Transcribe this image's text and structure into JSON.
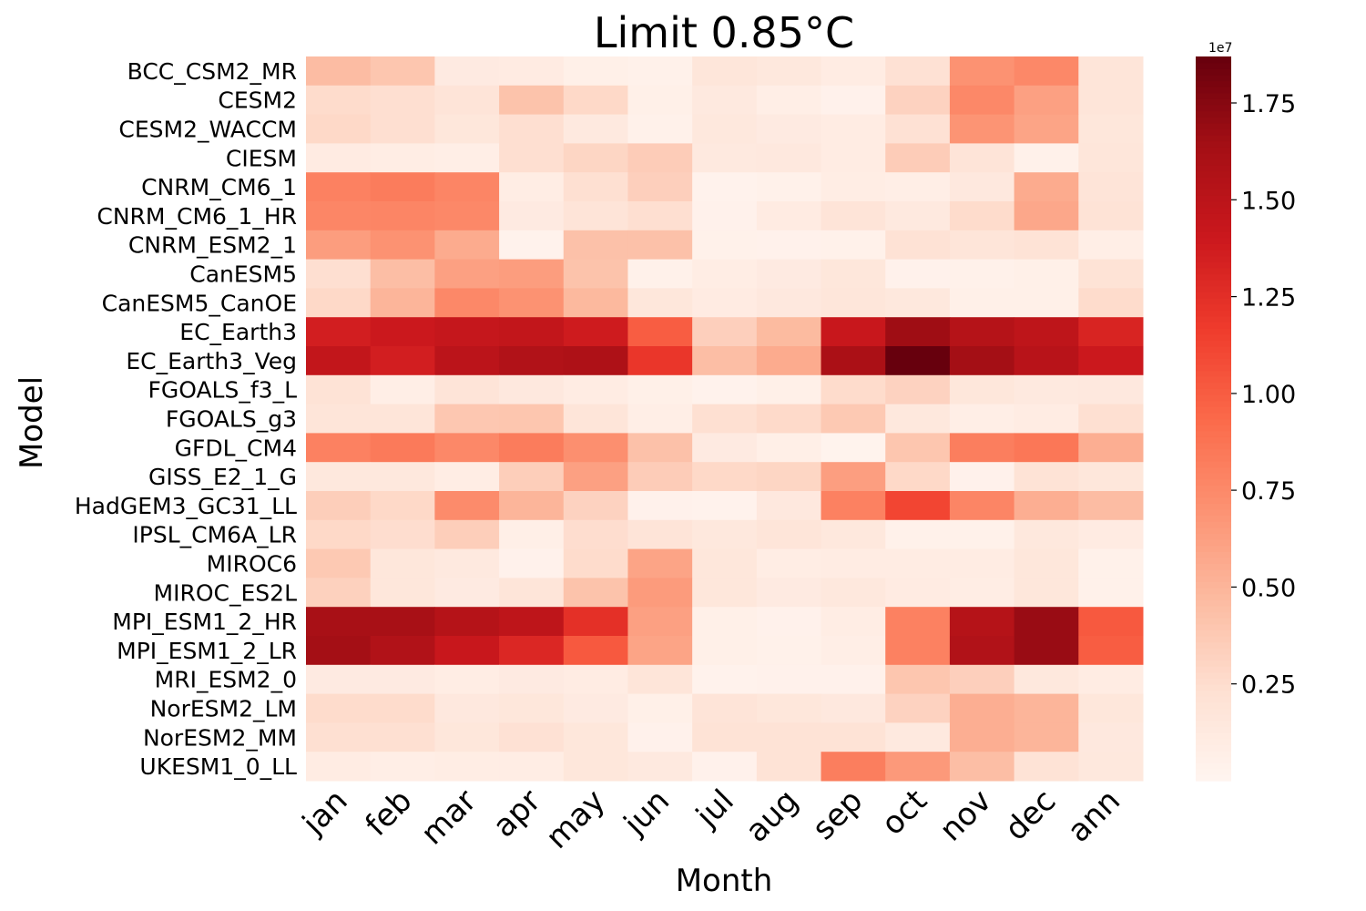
{
  "chart_data": {
    "type": "heatmap",
    "title": "Limit 0.85°C",
    "xlabel": "Month",
    "ylabel": "Model",
    "x_categories": [
      "jan",
      "feb",
      "mar",
      "apr",
      "may",
      "jun",
      "jul",
      "aug",
      "sep",
      "oct",
      "nov",
      "dec",
      "ann"
    ],
    "y_categories": [
      "BCC_CSM2_MR",
      "CESM2",
      "CESM2_WACCM",
      "CIESM",
      "CNRM_CM6_1",
      "CNRM_CM6_1_HR",
      "CNRM_ESM2_1",
      "CanESM5",
      "CanESM5_CanOE",
      "EC_Earth3",
      "EC_Earth3_Veg",
      "FGOALS_f3_L",
      "FGOALS_g3",
      "GFDL_CM4",
      "GISS_E2_1_G",
      "HadGEM3_GC31_LL",
      "IPSL_CM6A_LR",
      "MIROC6",
      "MIROC_ES2L",
      "MPI_ESM1_2_HR",
      "MPI_ESM1_2_LR",
      "MRI_ESM2_0",
      "NorESM2_LM",
      "NorESM2_MM",
      "UKESM1_0_LL"
    ],
    "values": [
      [
        4.6,
        4.0,
        1.2,
        1.1,
        0.6,
        0.5,
        1.7,
        1.5,
        1.0,
        2.2,
        7.0,
        7.6,
        1.8
      ],
      [
        2.6,
        2.4,
        1.9,
        4.2,
        2.8,
        0.6,
        1.3,
        0.8,
        0.4,
        3.2,
        7.6,
        6.2,
        1.8
      ],
      [
        2.8,
        2.4,
        1.6,
        2.4,
        1.3,
        0.5,
        1.5,
        1.2,
        1.0,
        2.2,
        6.9,
        6.0,
        1.6
      ],
      [
        1.1,
        0.9,
        0.8,
        2.4,
        3.0,
        3.6,
        1.3,
        1.4,
        1.0,
        3.6,
        1.9,
        0.5,
        1.7
      ],
      [
        8.0,
        8.3,
        7.8,
        0.9,
        2.3,
        3.4,
        0.3,
        0.5,
        0.9,
        0.8,
        1.4,
        5.6,
        1.9
      ],
      [
        7.7,
        7.8,
        7.6,
        1.2,
        1.9,
        2.4,
        0.4,
        1.1,
        1.9,
        1.3,
        2.6,
        5.8,
        2.0
      ],
      [
        6.4,
        7.0,
        5.6,
        0.3,
        4.3,
        4.3,
        0.5,
        0.4,
        0.5,
        2.1,
        1.8,
        2.0,
        0.8
      ],
      [
        2.4,
        4.5,
        6.2,
        6.4,
        4.2,
        0.5,
        0.9,
        1.2,
        1.6,
        0.4,
        0.5,
        0.6,
        2.0
      ],
      [
        2.8,
        5.0,
        7.6,
        7.0,
        4.8,
        1.6,
        1.1,
        1.4,
        1.7,
        1.5,
        0.6,
        0.6,
        2.6
      ],
      [
        13.6,
        14.0,
        14.4,
        14.6,
        13.8,
        10.0,
        3.4,
        4.7,
        14.2,
        16.6,
        15.4,
        14.8,
        13.2
      ],
      [
        14.6,
        13.6,
        15.0,
        15.6,
        15.8,
        12.0,
        4.5,
        5.6,
        16.0,
        18.7,
        16.4,
        15.2,
        14.0
      ],
      [
        2.0,
        0.8,
        1.9,
        1.4,
        1.0,
        0.6,
        0.3,
        0.6,
        2.6,
        3.2,
        1.6,
        1.3,
        1.4
      ],
      [
        1.8,
        1.8,
        3.9,
        4.0,
        1.8,
        0.8,
        2.3,
        2.7,
        3.8,
        1.5,
        0.8,
        1.0,
        2.3
      ],
      [
        8.0,
        8.4,
        7.6,
        8.3,
        7.2,
        4.3,
        1.2,
        0.7,
        0.2,
        4.0,
        8.2,
        8.6,
        5.4
      ],
      [
        1.5,
        1.5,
        0.9,
        3.5,
        6.2,
        3.6,
        2.8,
        3.0,
        6.3,
        2.8,
        0.4,
        2.0,
        1.6
      ],
      [
        3.5,
        2.8,
        7.4,
        5.0,
        3.2,
        0.4,
        0.3,
        1.4,
        8.0,
        11.2,
        7.8,
        5.4,
        4.6
      ],
      [
        2.8,
        2.5,
        3.5,
        0.7,
        2.5,
        1.9,
        1.5,
        1.8,
        1.5,
        0.5,
        0.5,
        1.5,
        1.1
      ],
      [
        3.8,
        1.6,
        1.3,
        0.4,
        2.6,
        6.0,
        1.6,
        0.9,
        1.0,
        1.0,
        1.0,
        1.6,
        0.5
      ],
      [
        3.3,
        1.6,
        1.2,
        1.8,
        4.2,
        6.5,
        1.6,
        1.2,
        1.5,
        1.1,
        0.9,
        1.6,
        0.5
      ],
      [
        16.2,
        16.2,
        15.4,
        14.8,
        12.4,
        6.2,
        0.6,
        0.4,
        0.9,
        8.0,
        15.4,
        16.8,
        10.2
      ],
      [
        16.4,
        15.6,
        14.2,
        13.0,
        10.2,
        6.0,
        0.6,
        0.5,
        0.8,
        8.0,
        15.6,
        16.8,
        10.0
      ],
      [
        1.2,
        1.2,
        0.9,
        1.2,
        1.0,
        1.8,
        0.3,
        0.4,
        0.4,
        4.0,
        3.4,
        1.5,
        1.0
      ],
      [
        2.6,
        2.6,
        1.4,
        1.6,
        1.2,
        0.6,
        1.9,
        1.6,
        1.4,
        3.2,
        5.4,
        5.0,
        1.6
      ],
      [
        2.3,
        2.3,
        1.6,
        2.2,
        1.6,
        0.4,
        2.0,
        2.0,
        2.0,
        1.3,
        5.4,
        5.0,
        1.4
      ],
      [
        1.0,
        0.8,
        0.9,
        0.9,
        1.6,
        1.3,
        0.4,
        2.0,
        8.2,
        6.6,
        4.5,
        2.0,
        1.5
      ]
    ],
    "value_scale_note": "values shown in units of 1e6 (colorbar multiplier 1e7)",
    "colorbar": {
      "min": 0.0,
      "max": 1.87,
      "ticks": [
        "0.25",
        "0.50",
        "0.75",
        "1.00",
        "1.25",
        "1.50",
        "1.75"
      ],
      "multiplier": "1e7",
      "colormap": "Reds"
    },
    "grid": false
  }
}
